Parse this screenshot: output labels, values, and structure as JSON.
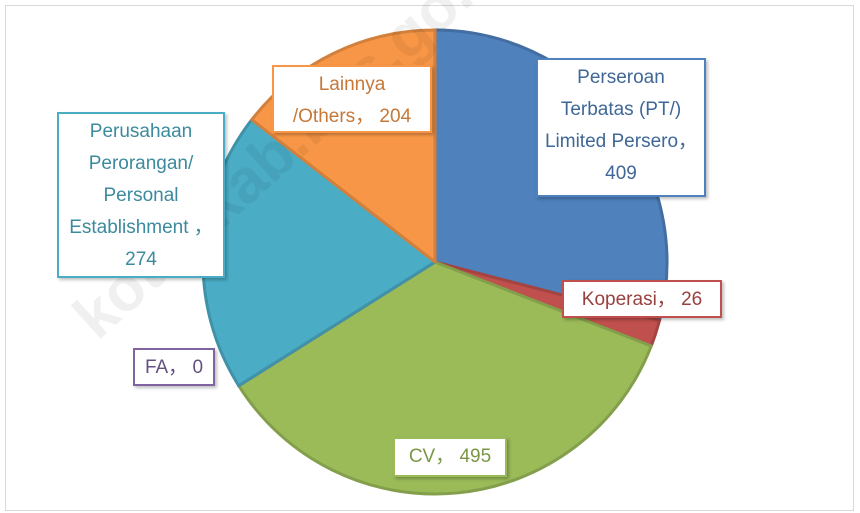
{
  "chart_data": {
    "type": "pie",
    "values": [
      409,
      26,
      495,
      0,
      274,
      204
    ],
    "value_labels": [
      "Perseroan Terbatas (PT/) Limited Persero， 409",
      "Koperasi， 26",
      "CV， 495",
      "FA， 0",
      "Perusahaan Perorangan/ Personal Establishment ， 274",
      "Lainnya /Others， 204"
    ],
    "colors": [
      "#4f81bd",
      "#c0504d",
      "#9bbb59",
      "#8064a2",
      "#4bacc6",
      "#f79646"
    ],
    "watermark": "kotimkab.bps.go.id"
  }
}
